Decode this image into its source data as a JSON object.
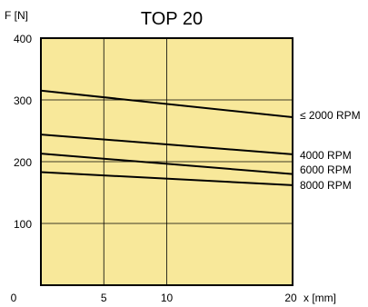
{
  "chart_data": {
    "type": "line",
    "title": "TOP 20",
    "ylabel": "F [N]",
    "xlabel": "x [mm]",
    "xlim": [
      0,
      20
    ],
    "ylim": [
      0,
      400
    ],
    "x_ticks": [
      0,
      5,
      10,
      20
    ],
    "y_ticks": [
      100,
      200,
      300,
      400
    ],
    "grid": true,
    "background_color": "#f8e89a",
    "line_color": "#000000",
    "series": [
      {
        "name": "≤ 2000  RPM",
        "x": [
          0,
          20
        ],
        "y": [
          315,
          272
        ]
      },
      {
        "name": "4000  RPM",
        "x": [
          0,
          20
        ],
        "y": [
          244,
          212
        ]
      },
      {
        "name": "6000  RPM",
        "x": [
          0,
          20
        ],
        "y": [
          213,
          180
        ]
      },
      {
        "name": "8000  RPM",
        "x": [
          0,
          20
        ],
        "y": [
          183,
          162
        ]
      }
    ]
  }
}
